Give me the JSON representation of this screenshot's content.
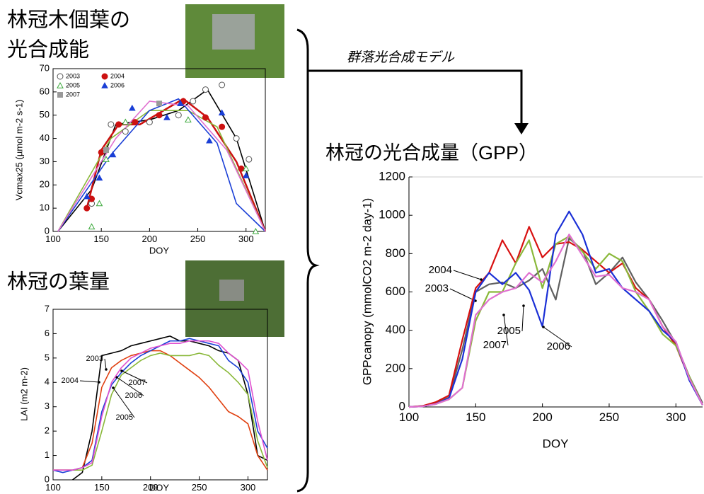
{
  "model_label": "群落光合成モデル",
  "chart_data": [
    {
      "type": "scatter",
      "title": [
        "林冠木個葉の",
        "光合成能"
      ],
      "xlabel": "DOY",
      "ylabel": "Vcmax25 (µmol m-2 s-1)",
      "xlim": [
        100,
        320
      ],
      "xticks": [
        100,
        150,
        200,
        250,
        300
      ],
      "ylim": [
        0,
        70
      ],
      "yticks": [
        0,
        10,
        20,
        30,
        40,
        50,
        60,
        70
      ],
      "legend": "upper left",
      "series": [
        {
          "name": "2003",
          "color": "#555555",
          "marker": "open-circle",
          "x": [
            140,
            160,
            175,
            200,
            230,
            245,
            258,
            275,
            290,
            303
          ],
          "values": [
            12,
            46,
            43,
            47,
            50,
            56,
            61,
            63,
            40,
            31
          ],
          "fit_color": "#000000",
          "fit_x": [
            105,
            140,
            165,
            200,
            230,
            260,
            290,
            320
          ],
          "fit_values": [
            0,
            18,
            46,
            48,
            52,
            61,
            40,
            0
          ]
        },
        {
          "name": "2004",
          "color": "#cc1111",
          "marker": "filled-circle",
          "x": [
            135,
            140,
            150,
            168,
            185,
            210,
            235,
            258,
            275,
            295
          ],
          "values": [
            10,
            14,
            34,
            46,
            47,
            50,
            56,
            49,
            45,
            27
          ],
          "fit_color": "#cc1111",
          "fit_x": [
            135,
            150,
            168,
            190,
            235,
            260,
            290,
            320
          ],
          "fit_values": [
            10,
            35,
            46,
            46,
            57,
            49,
            30,
            0
          ]
        },
        {
          "name": "2005",
          "color": "#3aa83a",
          "marker": "open-triangle",
          "x": [
            140,
            148,
            155,
            175,
            240,
            300,
            310
          ],
          "values": [
            2,
            12,
            31,
            47,
            48,
            27,
            0
          ],
          "fit_color": "#8ab83a",
          "fit_x": [
            105,
            160,
            200,
            240,
            270,
            320
          ],
          "fit_values": [
            0,
            40,
            52,
            52,
            45,
            0
          ]
        },
        {
          "name": "2006",
          "color": "#1a3fd6",
          "marker": "filled-triangle",
          "x": [
            135,
            148,
            162,
            182,
            218,
            232,
            262,
            275,
            300
          ],
          "values": [
            15,
            23,
            33,
            53,
            49,
            55,
            39,
            51,
            24
          ],
          "fit_color": "#1a3fd6",
          "fit_x": [
            105,
            160,
            200,
            230,
            270,
            290,
            320
          ],
          "fit_values": [
            0,
            33,
            52,
            57,
            38,
            12,
            0
          ]
        },
        {
          "name": "2007",
          "color": "#999999",
          "marker": "square",
          "x": [
            155,
            210
          ],
          "values": [
            35,
            55
          ],
          "fit_color": "#e070d0",
          "fit_x": [
            105,
            165,
            200,
            240,
            280,
            320
          ],
          "fit_values": [
            0,
            40,
            56,
            54,
            35,
            0
          ]
        }
      ]
    },
    {
      "type": "line",
      "title": [
        "林冠の葉量"
      ],
      "xlabel": "DOY",
      "ylabel": "LAI (m2 m-2)",
      "xlim": [
        100,
        320
      ],
      "xticks": [
        100,
        150,
        200,
        250,
        300
      ],
      "ylim": [
        0,
        7
      ],
      "yticks": [
        0,
        1,
        2,
        3,
        4,
        5,
        6,
        7
      ],
      "x": [
        100,
        110,
        120,
        130,
        140,
        150,
        160,
        170,
        180,
        190,
        200,
        210,
        220,
        230,
        240,
        250,
        260,
        270,
        280,
        290,
        300,
        310,
        320
      ],
      "series": [
        {
          "name": "2003",
          "color": "#000000",
          "values": [
            null,
            null,
            0.0,
            0.3,
            2.0,
            5.1,
            5.2,
            5.3,
            5.5,
            5.6,
            5.7,
            5.8,
            5.9,
            5.7,
            5.7,
            5.6,
            5.5,
            5.3,
            5.2,
            4.9,
            3.5,
            1.0,
            0.8
          ]
        },
        {
          "name": "2004",
          "color": "#e04010",
          "values": [
            0.4,
            0.4,
            0.4,
            0.5,
            1.5,
            3.8,
            4.6,
            4.9,
            5.1,
            5.2,
            5.3,
            5.3,
            5.1,
            4.8,
            4.5,
            4.2,
            3.8,
            3.3,
            2.8,
            2.6,
            2.3,
            1.0,
            0.4
          ]
        },
        {
          "name": "2005",
          "color": "#8ab83a",
          "values": [
            0.4,
            0.4,
            0.4,
            0.4,
            0.6,
            2.0,
            3.5,
            4.3,
            4.6,
            4.9,
            5.1,
            5.2,
            5.1,
            5.1,
            5.1,
            5.2,
            5.1,
            4.7,
            4.4,
            4.0,
            3.5,
            1.6,
            0.5
          ]
        },
        {
          "name": "2006",
          "color": "#1a3fd6",
          "values": [
            0.4,
            0.3,
            0.4,
            0.5,
            0.8,
            2.8,
            3.9,
            4.4,
            4.8,
            5.1,
            5.3,
            5.5,
            5.7,
            5.7,
            5.8,
            5.7,
            5.6,
            5.5,
            4.9,
            4.6,
            4.0,
            2.0,
            1.3
          ]
        },
        {
          "name": "2007",
          "color": "#e050d0",
          "values": [
            0.4,
            0.4,
            0.4,
            0.5,
            0.7,
            2.6,
            4.0,
            4.6,
            5.0,
            5.2,
            5.4,
            5.5,
            5.6,
            5.6,
            5.7,
            5.7,
            5.7,
            5.6,
            5.2,
            4.9,
            4.5,
            2.4,
            0.8
          ]
        }
      ]
    },
    {
      "type": "line",
      "title": [
        "林冠の光合成量（GPP）"
      ],
      "xlabel": "DOY",
      "ylabel": "GPPcanopy (mmolCO2 m-2 day-1)",
      "xlim": [
        100,
        320
      ],
      "xticks": [
        100,
        150,
        200,
        250,
        300
      ],
      "ylim": [
        0,
        1200
      ],
      "yticks": [
        0,
        200,
        400,
        600,
        800,
        1000,
        1200
      ],
      "x": [
        100,
        110,
        120,
        130,
        140,
        150,
        160,
        170,
        180,
        190,
        200,
        210,
        220,
        230,
        240,
        250,
        260,
        270,
        280,
        290,
        300,
        310,
        320
      ],
      "series": [
        {
          "name": "2003",
          "color": "#606060",
          "values": [
            0,
            5,
            20,
            50,
            300,
            600,
            640,
            650,
            620,
            660,
            720,
            560,
            880,
            820,
            640,
            700,
            780,
            650,
            560,
            450,
            330,
            160,
            20
          ]
        },
        {
          "name": "2004",
          "color": "#d81010",
          "values": [
            0,
            5,
            25,
            60,
            350,
            620,
            700,
            870,
            750,
            940,
            780,
            850,
            860,
            820,
            760,
            700,
            750,
            620,
            560,
            420,
            320,
            150,
            10
          ]
        },
        {
          "name": "2005",
          "color": "#8ab83a",
          "values": [
            0,
            3,
            15,
            40,
            100,
            450,
            600,
            600,
            750,
            870,
            620,
            850,
            890,
            810,
            720,
            800,
            760,
            600,
            500,
            380,
            320,
            160,
            10
          ]
        },
        {
          "name": "2006",
          "color": "#1a2fd6",
          "values": [
            0,
            3,
            15,
            45,
            250,
            600,
            700,
            640,
            700,
            610,
            420,
            900,
            1020,
            900,
            700,
            720,
            620,
            560,
            500,
            400,
            340,
            140,
            10
          ]
        },
        {
          "name": "2007",
          "color": "#e070d0",
          "values": [
            0,
            3,
            15,
            40,
            100,
            480,
            560,
            600,
            620,
            700,
            650,
            760,
            900,
            790,
            680,
            690,
            620,
            600,
            560,
            420,
            340,
            150,
            10
          ]
        }
      ]
    }
  ]
}
